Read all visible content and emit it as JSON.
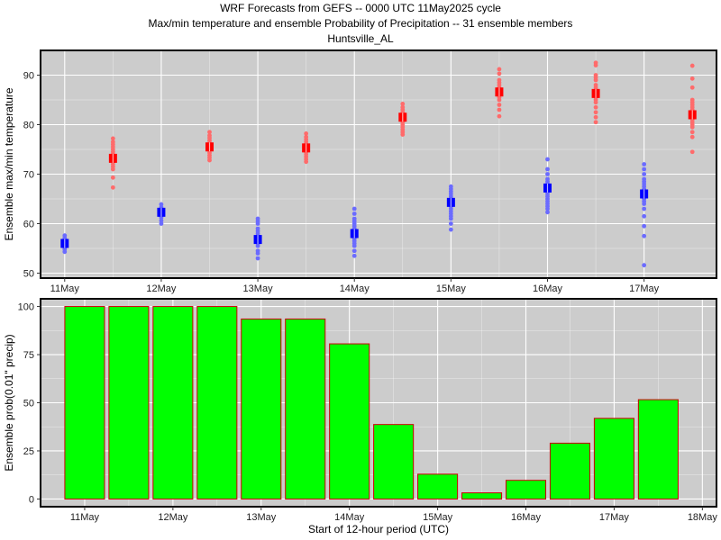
{
  "header": {
    "title_line1": "WRF Forecasts from GEFS --  0000 UTC 11May2025  cycle",
    "title_line2": "Max/min temperature and ensemble Probability of Precipitation --  31 ensemble members",
    "title_line3": "Huntsville_AL"
  },
  "colors": {
    "panel_bg": "#cccccc",
    "grid": "#ffffff",
    "min_point": "#6b6bff",
    "min_median": "#0000ff",
    "max_point": "#ff6b6b",
    "max_median": "#ff0000",
    "bar_fill": "#00ff00",
    "bar_edge": "#cc0000"
  },
  "chart_data": [
    {
      "type": "scatter",
      "ylabel": "Ensemble max/min temperature",
      "xlabel": "",
      "ylim": [
        49,
        95
      ],
      "yticks": [
        50,
        60,
        70,
        80,
        90
      ],
      "x_tick_labels": [
        "11May",
        "12May",
        "13May",
        "14May",
        "15May",
        "16May",
        "17May"
      ],
      "x_tick_positions": [
        0,
        1,
        2,
        3,
        4,
        5,
        6
      ],
      "xlim": [
        -0.25,
        6.75
      ],
      "grid": true,
      "series": [
        {
          "kind": "min",
          "x": [
            0,
            1,
            2,
            3,
            4,
            5,
            6
          ],
          "median": [
            56,
            62.3,
            56.8,
            58,
            64.3,
            67.2,
            66
          ],
          "members": [
            [
              54.3,
              54.8,
              55.2,
              55.6,
              56,
              56.3,
              56.7,
              57.1,
              57.6
            ],
            [
              60,
              60.6,
              61.2,
              61.8,
              62.3,
              62.8,
              63.3,
              63.9
            ],
            [
              53,
              54,
              54.5,
              55.5,
              56,
              56.5,
              57,
              57.5,
              58,
              58.5,
              59,
              60,
              60.5,
              61
            ],
            [
              53.5,
              54.5,
              55.5,
              56,
              56.5,
              57,
              57.5,
              58,
              58.5,
              59,
              59.5,
              60,
              60.5,
              61,
              62,
              63
            ],
            [
              58.8,
              60,
              61,
              61.5,
              62,
              62.5,
              63,
              63.5,
              64,
              64.5,
              65,
              65.5,
              66,
              66.5,
              67,
              67.5
            ],
            [
              62.3,
              63,
              63.5,
              64,
              64.5,
              65,
              65.5,
              66,
              66.5,
              67,
              67.5,
              68,
              68.5,
              69,
              70,
              71,
              73
            ],
            [
              51.6,
              57.5,
              59.5,
              61.5,
              63,
              64,
              64.5,
              65,
              65.5,
              66,
              66.5,
              67,
              67.5,
              68,
              68.5,
              69,
              70,
              71,
              72
            ]
          ]
        },
        {
          "kind": "max",
          "x": [
            0.5,
            1.5,
            2.5,
            3.5,
            4.5,
            5.5,
            6.5
          ],
          "median": [
            73.2,
            75.5,
            75.3,
            81.5,
            86.6,
            86.3,
            82
          ],
          "members": [
            [
              67.3,
              69.3,
              71,
              71.5,
              72,
              72.5,
              73,
              73.5,
              74,
              74.5,
              75,
              75.5,
              76,
              76.5,
              77.2
            ],
            [
              72.8,
              73.3,
              73.8,
              74.3,
              74.8,
              75.3,
              75.8,
              76.3,
              76.8,
              77.3,
              77.8,
              78.5
            ],
            [
              72.5,
              73,
              73.5,
              74,
              74.5,
              75,
              75.5,
              76,
              76.5,
              77,
              77.5,
              78.2
            ],
            [
              78,
              78.5,
              79,
              79.5,
              80,
              80.5,
              81,
              81.5,
              82,
              82.5,
              83,
              83.5,
              84.2
            ],
            [
              81.7,
              83,
              84,
              85,
              85.5,
              86,
              86.5,
              87,
              87.5,
              88,
              88.5,
              89,
              90.3,
              91.2
            ],
            [
              80.5,
              81.5,
              82.5,
              83.5,
              84.5,
              85,
              85.5,
              86,
              86.5,
              87,
              87.5,
              88,
              89,
              89.5,
              90,
              92,
              92.5
            ],
            [
              74.5,
              77.5,
              78.5,
              79.5,
              80,
              80.5,
              81,
              81.5,
              82,
              82.5,
              83,
              83.5,
              84,
              84.5,
              85,
              87.5,
              89.3,
              91.9
            ]
          ]
        }
      ]
    },
    {
      "type": "bar",
      "ylabel": "Ensemble prob(0.01\" precip)",
      "xlabel": "Start of 12-hour period (UTC)",
      "ylim": [
        -4,
        104
      ],
      "yticks": [
        0,
        25,
        50,
        75,
        100
      ],
      "x_tick_labels": [
        "11May",
        "12May",
        "13May",
        "14May",
        "15May",
        "16May",
        "17May",
        "18May"
      ],
      "x_tick_positions": [
        0,
        1,
        2,
        3,
        4,
        5,
        6,
        7
      ],
      "xlim": [
        -0.5,
        7.16
      ],
      "bar_width": 0.45,
      "grid": true,
      "x": [
        0,
        0.5,
        1,
        1.5,
        2,
        2.5,
        3,
        3.5,
        4,
        4.5,
        5,
        5.5,
        6,
        6.5
      ],
      "values": [
        100,
        100,
        100,
        100,
        93.5,
        93.5,
        80.6,
        38.7,
        12.9,
        3.2,
        9.7,
        29,
        41.9,
        51.6
      ]
    }
  ]
}
